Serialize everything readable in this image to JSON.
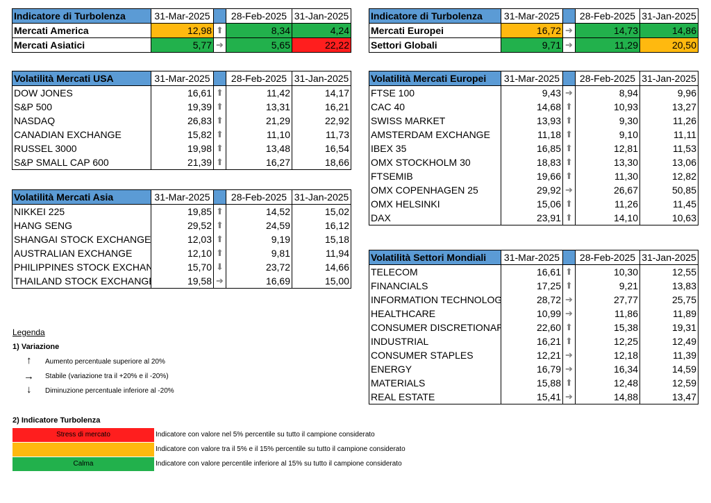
{
  "turbulence_tables": [
    {
      "title": "Indicatore di Turbolenza",
      "dates": [
        "31-Mar-2025",
        "28-Feb-2025",
        "31-Jan-2025"
      ],
      "rows": [
        {
          "name": "Mercati America",
          "v1": "12,98",
          "c1": "#ffb90f",
          "arrow": "up",
          "v2": "8,34",
          "c2": "#22b14c",
          "v3": "4,24",
          "c3": "#22b14c"
        },
        {
          "name": "Mercati Asiatici",
          "v1": "5,77",
          "c1": "#22b14c",
          "arrow": "right",
          "v2": "5,65",
          "c2": "#22b14c",
          "v3": "22,22",
          "c3": "#ff1e1e"
        }
      ]
    },
    {
      "title": "Indicatore di Turbolenza",
      "dates": [
        "31-Mar-2025",
        "28-Feb-2025",
        "31-Jan-2025"
      ],
      "rows": [
        {
          "name": "Mercati Europei",
          "v1": "16,72",
          "c1": "#ffb90f",
          "arrow": "right",
          "v2": "14,73",
          "c2": "#22b14c",
          "v3": "14,86",
          "c3": "#22b14c"
        },
        {
          "name": "Settori Globali",
          "v1": "9,71",
          "c1": "#22b14c",
          "arrow": "right",
          "v2": "11,29",
          "c2": "#22b14c",
          "v3": "20,50",
          "c3": "#ffb90f"
        }
      ]
    }
  ],
  "volatility_tables": [
    {
      "title": "Volatilità Mercati USA",
      "dates": [
        "31-Mar-2025",
        "28-Feb-2025",
        "31-Jan-2025"
      ],
      "rows": [
        {
          "name": "DOW JONES",
          "v1": "16,61",
          "arrow": "up",
          "v2": "11,42",
          "v3": "14,17"
        },
        {
          "name": "S&P 500",
          "v1": "19,39",
          "arrow": "up",
          "v2": "13,31",
          "v3": "16,21"
        },
        {
          "name": "NASDAQ",
          "v1": "26,83",
          "arrow": "up",
          "v2": "21,29",
          "v3": "22,92"
        },
        {
          "name": "CANADIAN EXCHANGE",
          "v1": "15,82",
          "arrow": "up",
          "v2": "11,10",
          "v3": "11,73"
        },
        {
          "name": "RUSSEL 3000",
          "v1": "19,98",
          "arrow": "up",
          "v2": "13,48",
          "v3": "16,54"
        },
        {
          "name": "S&P SMALL CAP 600",
          "v1": "21,39",
          "arrow": "up",
          "v2": "16,27",
          "v3": "18,66"
        }
      ]
    },
    {
      "title": "Volatilità Mercati Asia",
      "dates": [
        "31-Mar-2025",
        "28-Feb-2025",
        "31-Jan-2025"
      ],
      "rows": [
        {
          "name": "NIKKEI 225",
          "v1": "19,85",
          "arrow": "up",
          "v2": "14,52",
          "v3": "15,02"
        },
        {
          "name": "HANG SENG",
          "v1": "29,52",
          "arrow": "up",
          "v2": "24,59",
          "v3": "16,12"
        },
        {
          "name": "SHANGAI STOCK EXCHANGE",
          "v1": "12,03",
          "arrow": "up",
          "v2": "9,19",
          "v3": "15,18"
        },
        {
          "name": "AUSTRALIAN EXCHANGE",
          "v1": "12,10",
          "arrow": "up",
          "v2": "9,81",
          "v3": "11,94"
        },
        {
          "name": "PHILIPPINES STOCK EXCHANGE",
          "v1": "15,70",
          "arrow": "down",
          "v2": "23,72",
          "v3": "14,66"
        },
        {
          "name": "THAILAND STOCK EXCHANGE",
          "v1": "19,58",
          "arrow": "right",
          "v2": "16,69",
          "v3": "15,00"
        }
      ]
    },
    {
      "title": "Volatilità Mercati Europei",
      "dates": [
        "31-Mar-2025",
        "28-Feb-2025",
        "31-Jan-2025"
      ],
      "rows": [
        {
          "name": "FTSE 100",
          "v1": "9,43",
          "arrow": "right",
          "v2": "8,94",
          "v3": "9,96"
        },
        {
          "name": "CAC 40",
          "v1": "14,68",
          "arrow": "up",
          "v2": "10,93",
          "v3": "13,27"
        },
        {
          "name": "SWISS MARKET",
          "v1": "13,93",
          "arrow": "up",
          "v2": "9,30",
          "v3": "11,26"
        },
        {
          "name": "AMSTERDAM EXCHANGE",
          "v1": "11,18",
          "arrow": "up",
          "v2": "9,10",
          "v3": "11,11"
        },
        {
          "name": "IBEX 35",
          "v1": "16,85",
          "arrow": "up",
          "v2": "12,81",
          "v3": "11,53"
        },
        {
          "name": "OMX STOCKHOLM 30",
          "v1": "18,83",
          "arrow": "up",
          "v2": "13,30",
          "v3": "13,06"
        },
        {
          "name": "FTSEMIB",
          "v1": "19,66",
          "arrow": "up",
          "v2": "11,30",
          "v3": "12,82"
        },
        {
          "name": "OMX COPENHAGEN 25",
          "v1": "29,92",
          "arrow": "right",
          "v2": "26,67",
          "v3": "50,85"
        },
        {
          "name": "OMX HELSINKI",
          "v1": "15,06",
          "arrow": "up",
          "v2": "11,26",
          "v3": "11,45"
        },
        {
          "name": "DAX",
          "v1": "23,91",
          "arrow": "up",
          "v2": "14,10",
          "v3": "10,63"
        }
      ]
    },
    {
      "title": "Volatilità Settori Mondiali",
      "dates": [
        "31-Mar-2025",
        "28-Feb-2025",
        "31-Jan-2025"
      ],
      "rows": [
        {
          "name": "TELECOM",
          "v1": "16,61",
          "arrow": "up",
          "v2": "10,30",
          "v3": "12,55"
        },
        {
          "name": "FINANCIALS",
          "v1": "17,25",
          "arrow": "up",
          "v2": "9,21",
          "v3": "13,83"
        },
        {
          "name": "INFORMATION TECHNOLOGY",
          "v1": "28,72",
          "arrow": "right",
          "v2": "27,77",
          "v3": "25,75"
        },
        {
          "name": "HEALTHCARE",
          "v1": "10,99",
          "arrow": "right",
          "v2": "11,86",
          "v3": "11,89"
        },
        {
          "name": "CONSUMER DISCRETIONARY",
          "v1": "22,60",
          "arrow": "up",
          "v2": "15,38",
          "v3": "19,31"
        },
        {
          "name": "INDUSTRIAL",
          "v1": "16,21",
          "arrow": "up",
          "v2": "12,25",
          "v3": "12,49"
        },
        {
          "name": "CONSUMER STAPLES",
          "v1": "12,21",
          "arrow": "right",
          "v2": "12,18",
          "v3": "11,39"
        },
        {
          "name": "ENERGY",
          "v1": "16,79",
          "arrow": "right",
          "v2": "16,34",
          "v3": "14,59"
        },
        {
          "name": "MATERIALS",
          "v1": "15,88",
          "arrow": "up",
          "v2": "12,48",
          "v3": "12,59"
        },
        {
          "name": "REAL ESTATE",
          "v1": "15,41",
          "arrow": "right",
          "v2": "14,88",
          "v3": "13,47"
        }
      ]
    }
  ],
  "legend": {
    "title": "Legenda",
    "section1": "1) Variazione",
    "var_up": "Aumento percentuale superiore al 20%",
    "var_stable": "Stabile (variazione tra il +20% e il -20%)",
    "var_down": "Diminuzione percentuale inferiore al -20%",
    "section2": "2) Indicatore Turbolenza",
    "stress_label": "Stress di mercato",
    "stress_desc": "Indicatore con valore nel 5% percentile su tutto il campione considerato",
    "mid_label": "",
    "mid_desc": "Indicatore con valore tra il 5% e il 15% percentile su tutto il campione considerato",
    "calm_label": "Calma",
    "calm_desc": "Indicatore con valore  percentile inferiore al 15% su tutto il campione considerato",
    "colors": {
      "stress": "#ff1e1e",
      "mid": "#ffb90f",
      "calm": "#22b14c"
    }
  }
}
